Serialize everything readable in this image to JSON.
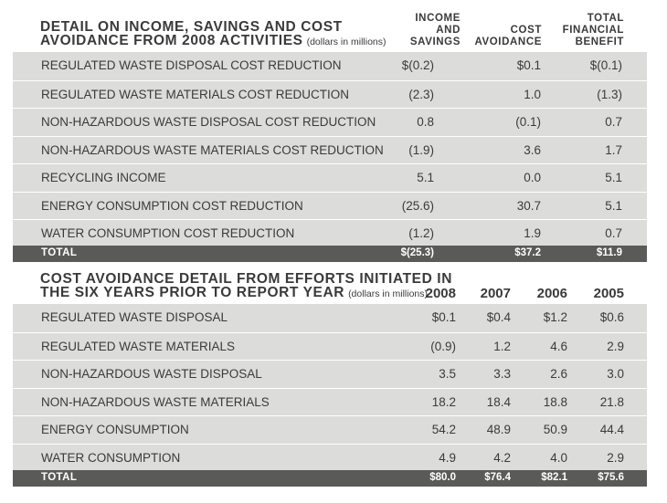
{
  "table1": {
    "title_line1": "DETAIL ON INCOME, SAVINGS AND COST",
    "title_line2": "AVOIDANCE FROM 2008 ACTIVITIES",
    "title_note": "(dollars in millions)",
    "col1": [
      "INCOME",
      "AND",
      "SAVINGS"
    ],
    "col2": [
      "COST",
      "AVOIDANCE"
    ],
    "col3": [
      "TOTAL",
      "FINANCIAL",
      "BENEFIT"
    ],
    "rows": [
      {
        "label": "REGULATED WASTE DISPOSAL COST REDUCTION",
        "income": "$(0.2)",
        "avoid": "$0.1",
        "total": "$(0.1)"
      },
      {
        "label": "REGULATED WASTE MATERIALS COST REDUCTION",
        "income": "(2.3)",
        "avoid": "1.0",
        "total": "(1.3)"
      },
      {
        "label": "NON-HAZARDOUS WASTE DISPOSAL COST REDUCTION",
        "income": "0.8",
        "avoid": "(0.1)",
        "total": "0.7"
      },
      {
        "label": "NON-HAZARDOUS WASTE MATERIALS COST REDUCTION",
        "income": "(1.9)",
        "avoid": "3.6",
        "total": "1.7"
      },
      {
        "label": "RECYCLING INCOME",
        "income": "5.1",
        "avoid": "0.0",
        "total": "5.1"
      },
      {
        "label": "ENERGY CONSUMPTION COST REDUCTION",
        "income": "(25.6)",
        "avoid": "30.7",
        "total": "5.1"
      },
      {
        "label": "WATER CONSUMPTION COST REDUCTION",
        "income": "(1.2)",
        "avoid": "1.9",
        "total": "0.7"
      }
    ],
    "total": {
      "label": "TOTAL",
      "income": "$(25.3)",
      "avoid": "$37.2",
      "total": "$11.9"
    }
  },
  "table2": {
    "title_line1": "COST AVOIDANCE DETAIL FROM EFFORTS INITIATED IN",
    "title_line2": "THE SIX YEARS PRIOR TO REPORT YEAR",
    "title_note": "(dollars in millions)",
    "years": [
      "2008",
      "2007",
      "2006",
      "2005"
    ],
    "rows": [
      {
        "label": "REGULATED WASTE DISPOSAL",
        "values": [
          "$0.1",
          "$0.4",
          "$1.2",
          "$0.6"
        ]
      },
      {
        "label": "REGULATED WASTE MATERIALS",
        "values": [
          "(0.9)",
          "1.2",
          "4.6",
          "2.9"
        ]
      },
      {
        "label": "NON-HAZARDOUS WASTE DISPOSAL",
        "values": [
          "3.5",
          "3.3",
          "2.6",
          "3.0"
        ]
      },
      {
        "label": "NON-HAZARDOUS WASTE MATERIALS",
        "values": [
          "18.2",
          "18.4",
          "18.8",
          "21.8"
        ]
      },
      {
        "label": "ENERGY CONSUMPTION",
        "values": [
          "54.2",
          "48.9",
          "50.9",
          "44.4"
        ]
      },
      {
        "label": "WATER CONSUMPTION",
        "values": [
          "4.9",
          "4.2",
          "4.0",
          "2.9"
        ]
      }
    ],
    "total": {
      "label": "TOTAL",
      "values": [
        "$80.0",
        "$76.4",
        "$82.1",
        "$75.6"
      ]
    }
  }
}
